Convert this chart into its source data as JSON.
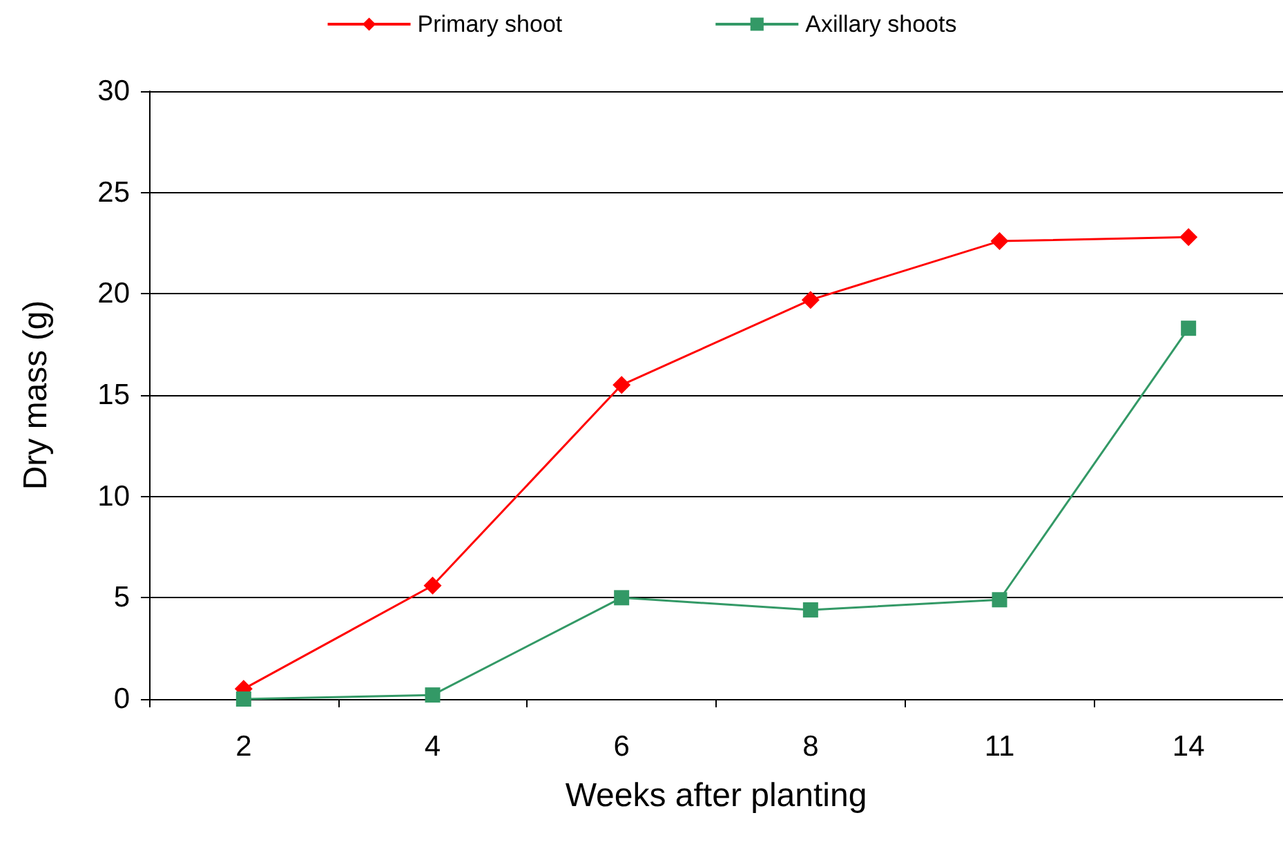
{
  "chart_data": {
    "type": "line",
    "xlabel": "Weeks after planting",
    "ylabel": "Dry mass (g)",
    "categories": [
      "2",
      "4",
      "6",
      "8",
      "11",
      "14"
    ],
    "series": [
      {
        "name": "Primary shoot",
        "color": "#ff0000",
        "marker": "diamond",
        "values": [
          0.5,
          5.6,
          15.5,
          19.7,
          22.6,
          22.8
        ]
      },
      {
        "name": "Axillary shoots",
        "color": "#339966",
        "marker": "square",
        "values": [
          0,
          0.2,
          5.0,
          4.4,
          4.9,
          18.3
        ]
      }
    ],
    "ylim": [
      0,
      30
    ],
    "yticks": [
      0,
      5,
      10,
      15,
      20,
      25,
      30
    ],
    "grid": "y",
    "legend": "top",
    "line_style": "solid"
  }
}
